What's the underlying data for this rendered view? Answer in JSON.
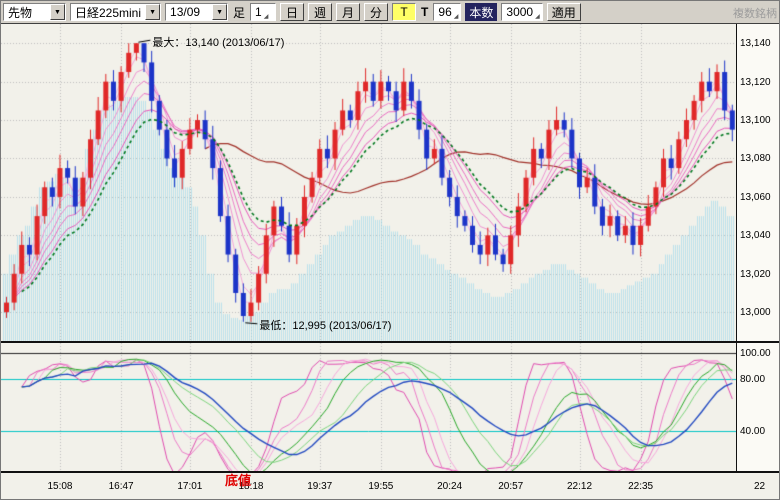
{
  "toolbar": {
    "instrument_type": "先物",
    "symbol": "日経225mini",
    "contract_month": "13/09",
    "period_label": "足",
    "period_value": "1",
    "period_buttons": [
      "日",
      "週",
      "月",
      "分"
    ],
    "tick_period_button": "T",
    "tick_size_label": "T",
    "tick_size_value": "96",
    "bar_count_label": "本数",
    "bar_count_value": "3000",
    "apply_button": "適用",
    "corner_label": "複数銘柄"
  },
  "main_chart": {
    "y_labels": [
      "13,140",
      "13,120",
      "13,100",
      "13,080",
      "13,060",
      "13,040",
      "13,020",
      "13,000"
    ],
    "max_annotation": "最大：13,140 (2013/06/17)",
    "min_annotation": "最低：12,995 (2013/06/17)"
  },
  "lower_panel": {
    "y_labels": [
      "100.00",
      "80.00",
      "40.00"
    ],
    "bottom_annotation": "底値"
  },
  "x_axis": {
    "labels": [
      "15:08",
      "16:47",
      "17:01",
      "18:18",
      "19:37",
      "19:55",
      "20:24",
      "20:57",
      "22:12",
      "22:35"
    ],
    "partial_label": "22"
  },
  "chart_data": {
    "type": "candlestick",
    "symbol": "日経225mini 13/09",
    "price_max": 13150,
    "price_min": 12985,
    "grid_step": 20,
    "first_open": 13000,
    "closes": [
      13005,
      13020,
      13035,
      13030,
      13050,
      13065,
      13060,
      13075,
      13070,
      13055,
      13070,
      13090,
      13105,
      13120,
      13110,
      13125,
      13135,
      13140,
      13130,
      13110,
      13095,
      13080,
      13070,
      13085,
      13095,
      13100,
      13090,
      13075,
      13050,
      13030,
      13010,
      12998,
      13005,
      13020,
      13040,
      13055,
      13045,
      13030,
      13045,
      13060,
      13070,
      13085,
      13080,
      13095,
      13105,
      13100,
      13115,
      13120,
      13110,
      13120,
      13115,
      13105,
      13120,
      13110,
      13095,
      13080,
      13085,
      13070,
      13060,
      13050,
      13045,
      13035,
      13030,
      13040,
      13030,
      13025,
      13040,
      13055,
      13070,
      13085,
      13080,
      13095,
      13100,
      13095,
      13080,
      13065,
      13070,
      13055,
      13045,
      13050,
      13040,
      13045,
      13035,
      13045,
      13055,
      13065,
      13080,
      13075,
      13090,
      13100,
      13110,
      13120,
      13115,
      13125,
      13105,
      13095
    ],
    "cloud": [
      13020,
      13030,
      13040,
      13045,
      13055,
      13065,
      13068,
      13072,
      13070,
      13065,
      13070,
      13085,
      13095,
      13105,
      13108,
      13110,
      13112,
      13112,
      13110,
      13105,
      13095,
      13085,
      13075,
      13070,
      13065,
      13055,
      13040,
      13020,
      13005,
      12999,
      12997,
      12996,
      12998,
      13000,
      13005,
      13010,
      13012,
      13012,
      13015,
      13020,
      13025,
      13030,
      13035,
      13040,
      13042,
      13045,
      13048,
      13050,
      13050,
      13048,
      13045,
      13042,
      13040,
      13038,
      13035,
      13030,
      13028,
      13025,
      13022,
      13020,
      13018,
      13015,
      13012,
      13010,
      13008,
      13008,
      13010,
      13012,
      13015,
      13018,
      13020,
      13022,
      13025,
      13025,
      13022,
      13020,
      13018,
      13015,
      13012,
      13010,
      13010,
      13012,
      13014,
      13016,
      13018,
      13020,
      13025,
      13030,
      13035,
      13040,
      13045,
      13050,
      13055,
      13058,
      13055,
      13050
    ],
    "grid_indices": [
      7,
      15,
      24,
      32,
      41,
      49,
      58,
      66,
      75,
      83
    ],
    "annotations": {
      "max_value": 13140,
      "max_index": 17,
      "min_value": 12995,
      "min_index": 31,
      "date": "2013/06/17"
    },
    "layout": {
      "x0": 3,
      "dx": 7.64,
      "body_w": 5
    },
    "colors": {
      "up": "#e02828",
      "down": "#1c34c8",
      "cloud": "rgba(150,215,235,0.6)",
      "grid": "#bcbcbc",
      "bg": "#f2f1ea"
    },
    "overlays": {
      "ema_ribbon": {
        "periods": [
          2,
          3,
          5,
          7,
          9,
          12
        ],
        "colors": [
          "#f6bce2",
          "#f3a8da",
          "#f094d2",
          "#ed80ca",
          "#ea6cc2",
          "#e758ba"
        ]
      },
      "green_ma": {
        "period": 14,
        "color": "#00781e"
      },
      "red_ma": {
        "period": 26,
        "color": "#a03028"
      }
    },
    "lower": {
      "max": 108,
      "min": 9,
      "ref_lines": [
        {
          "value": 100,
          "color": "#202020"
        },
        {
          "value": 80,
          "color": "#00c4c4"
        },
        {
          "value": 40,
          "color": "#00c4c4"
        }
      ],
      "series": [
        {
          "period": 9,
          "smooth": 3,
          "color": "#e04cb0"
        },
        {
          "period": 12,
          "smooth": 4,
          "color": "#ec7cc8"
        },
        {
          "period": 15,
          "smooth": 5,
          "color": "#f6a8dc"
        },
        {
          "period": 21,
          "smooth": 6,
          "color": "#28a828"
        },
        {
          "period": 27,
          "smooth": 8,
          "color": "#7cd47c"
        },
        {
          "period": 39,
          "smooth": 10,
          "color": "#2048c0"
        }
      ]
    }
  }
}
